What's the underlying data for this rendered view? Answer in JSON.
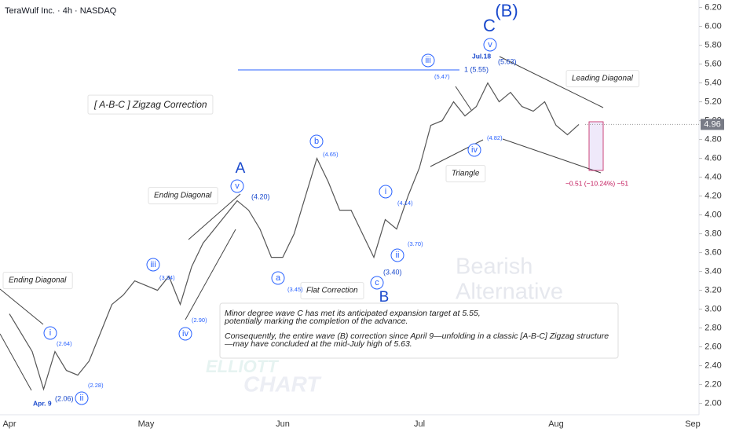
{
  "chart_data": {
    "type": "line",
    "title": "TeraWulf Inc. · 4h · NASDAQ",
    "color": "#555555",
    "categories": [
      "Apr",
      null,
      null,
      null,
      null,
      null,
      null,
      null,
      null,
      null,
      null,
      null,
      "May",
      null,
      null,
      null,
      null,
      null,
      null,
      null,
      null,
      null,
      null,
      null,
      "Jun",
      null,
      null,
      null,
      null,
      null,
      null,
      null,
      null,
      null,
      null,
      null,
      "Jul",
      null,
      null,
      null,
      null,
      null,
      null,
      null,
      null,
      null,
      null,
      null,
      "Aug",
      null,
      null,
      null,
      null,
      null,
      null,
      null,
      null,
      null,
      null,
      null,
      "Sep"
    ],
    "values": [
      2.95,
      2.75,
      2.55,
      2.15,
      2.55,
      2.35,
      2.3,
      2.45,
      2.75,
      3.05,
      3.15,
      3.3,
      3.25,
      3.2,
      3.35,
      3.05,
      3.45,
      3.7,
      3.85,
      4.0,
      4.15,
      4.05,
      3.85,
      3.55,
      3.55,
      3.8,
      4.2,
      4.6,
      4.35,
      4.05,
      4.05,
      3.8,
      3.55,
      3.95,
      3.85,
      4.2,
      4.5,
      4.95,
      5.0,
      5.2,
      5.05,
      5.15,
      5.4,
      5.2,
      5.3,
      5.15,
      5.1,
      5.2,
      4.95,
      4.85,
      4.96,
      null,
      null,
      null,
      null,
      null,
      null,
      null,
      null,
      null,
      null
    ],
    "ylim": [
      1.88,
      6.28
    ],
    "yticks": [
      {
        "value": 2,
        "label": "2.00"
      },
      {
        "value": 2.2,
        "label": "2.20"
      },
      {
        "value": 2.4,
        "label": "2.40"
      },
      {
        "value": 2.6,
        "label": "2.60"
      },
      {
        "value": 2.8,
        "label": "2.80"
      },
      {
        "value": 3,
        "label": "3.00"
      },
      {
        "value": 3.2,
        "label": "3.20"
      },
      {
        "value": 3.4,
        "label": "3.40"
      },
      {
        "value": 3.6,
        "label": "3.60"
      },
      {
        "value": 3.8,
        "label": "3.80"
      },
      {
        "value": 4,
        "label": "4.00"
      },
      {
        "value": 4.2,
        "label": "4.20"
      },
      {
        "value": 4.4,
        "label": "4.40"
      },
      {
        "value": 4.6,
        "label": "4.60"
      },
      {
        "value": 4.8,
        "label": "4.80"
      },
      {
        "value": 5,
        "label": "5.00"
      },
      {
        "value": 5.2,
        "label": "5.20"
      },
      {
        "value": 5.4,
        "label": "5.40"
      },
      {
        "value": 5.6,
        "label": "5.60"
      },
      {
        "value": 5.8,
        "label": "5.80"
      },
      {
        "value": 6,
        "label": "6.00"
      },
      {
        "value": 6.2,
        "label": "6.20"
      }
    ],
    "last_price": 4.96,
    "annotations": [
      "[ A-B-C ] Zigzag Correction",
      "Ending Diagonal",
      "Ending Diagonal",
      "Flat Correction",
      "Triangle",
      "Leading Diagonal"
    ],
    "watermarks": [
      "Bearish",
      "Alternative",
      "ELLIOTT",
      "CHART"
    ],
    "waves": [
      "i",
      "ii",
      "iii",
      "iv",
      "v",
      "a",
      "b",
      "c",
      "i",
      "ii",
      "iii",
      "iv",
      "v",
      "A",
      "B",
      "C",
      "(B)"
    ],
    "price_notes": [
      "(2.64)",
      "(2.06)",
      "(2.28)",
      "(3.34)",
      "(2.90)",
      "(4.20)",
      "(3.45)",
      "(4.65)",
      "(3.40)",
      "(4.14)",
      "(3.70)",
      "(5.47)",
      "1 (5.55)",
      "(5.63)",
      "(4.82)"
    ],
    "date_notes": [
      "Apr. 9",
      "Jul.18"
    ],
    "measure": "−0.51 (−10.24%) −51",
    "note_lines": [
      "Minor degree wave C has met its anticipated expansion target at 5.55,",
      " potentially marking the completion of the advance.",
      "Consequently, the entire wave (B) correction since April 9—unfolding in a classic [A-B-C] Zigzag structure",
      "—may have concluded at the mid-July high of 5.63."
    ]
  }
}
